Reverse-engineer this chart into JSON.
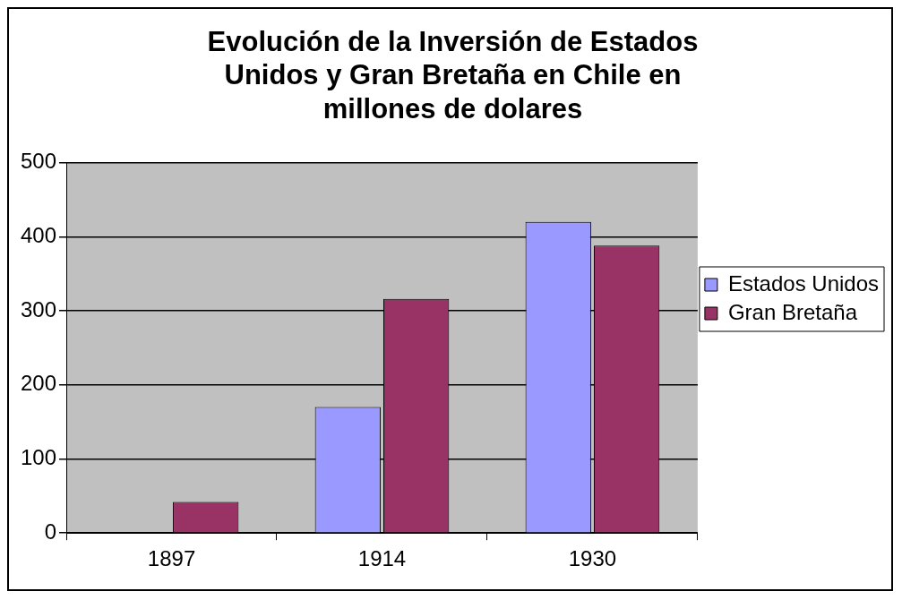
{
  "chart_data": {
    "type": "bar",
    "title": "Evolución de la Inversión de Estados Unidos y Gran Bretaña en Chile en millones de dolares",
    "categories": [
      "1897",
      "1914",
      "1930"
    ],
    "series": [
      {
        "name": "Estados Unidos",
        "color": "#9999ff",
        "values": [
          null,
          170,
          420
        ]
      },
      {
        "name": "Gran Bretaña",
        "color": "#993366",
        "values": [
          42,
          316,
          388
        ]
      }
    ],
    "ylim": [
      0,
      500
    ],
    "yticks": [
      0,
      100,
      200,
      300,
      400,
      500
    ],
    "grid": "y",
    "legend": "right"
  }
}
